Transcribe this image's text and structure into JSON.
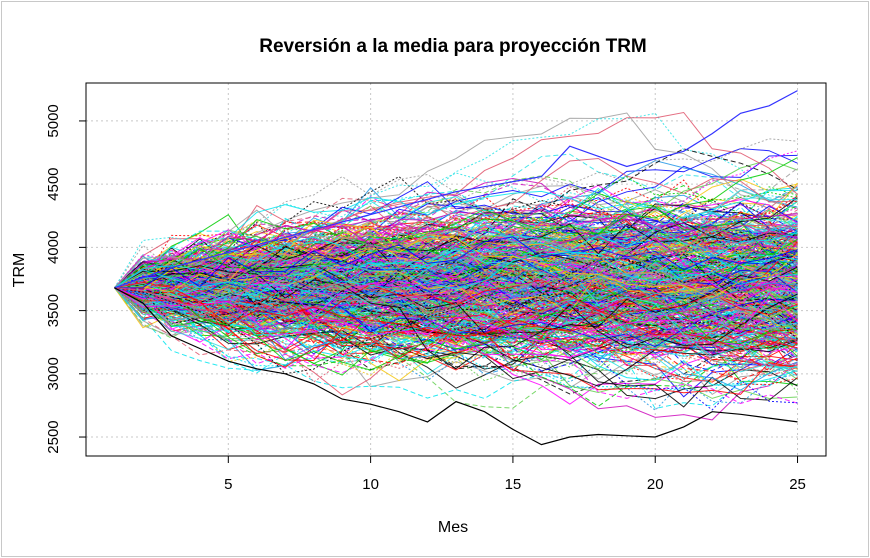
{
  "chart_data": {
    "type": "line",
    "title": "Reversión a la media para proyección TRM",
    "xlabel": "Mes",
    "ylabel": "TRM",
    "xlim": [
      0,
      26
    ],
    "ylim": [
      2350,
      5300
    ],
    "x_ticks": [
      5,
      10,
      15,
      20,
      25
    ],
    "y_ticks": [
      2500,
      3000,
      3500,
      4000,
      4500,
      5000
    ],
    "grid": true,
    "months": [
      1,
      25
    ],
    "start_value": 3680,
    "mean_level": 3700,
    "num_series": 600,
    "spread_range_at_month_25": [
      2400,
      5250
    ],
    "highlight_series": [
      {
        "color": "#3333ff",
        "values": [
          3680,
          3760,
          3840,
          3900,
          3960,
          4020,
          4080,
          4140,
          4200,
          4260,
          4320,
          4380,
          4440,
          4480,
          4520,
          4560,
          4800,
          4720,
          4640,
          4700,
          4760,
          4900,
          5060,
          5120,
          5240
        ]
      },
      {
        "color": "#000000",
        "values": [
          3680,
          3560,
          3300,
          3200,
          3100,
          3040,
          3000,
          2920,
          2800,
          2760,
          2700,
          2620,
          2780,
          2700,
          2560,
          2440,
          2500,
          2520,
          2510,
          2500,
          2580,
          2700,
          2680,
          2650,
          2620
        ]
      }
    ],
    "colors": [
      "#000000",
      "#df536b",
      "#61d04f",
      "#2297e6",
      "#28e2e5",
      "#cd0bbc",
      "#f5c710",
      "#9e9e9e",
      "#ff0000",
      "#00cd00",
      "#0000ff",
      "#00e5ee",
      "#ff00ff"
    ]
  }
}
